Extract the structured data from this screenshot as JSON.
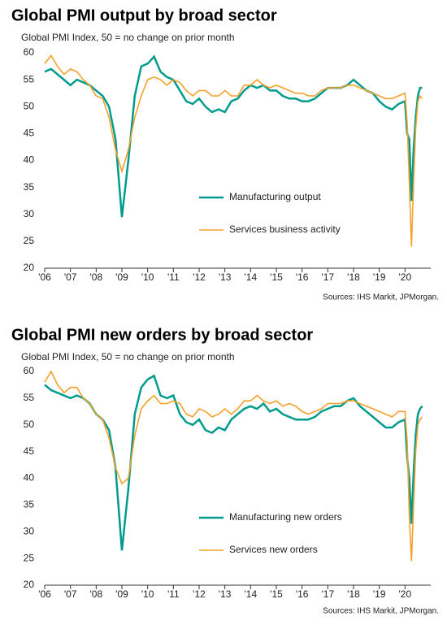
{
  "chart_data": [
    {
      "type": "line",
      "title": "Global PMI output by broad sector",
      "subtitle": "Global  PMI Index, 50 = no change on prior month",
      "source": "Sources: IHS Markit, JPMorgan.",
      "x": [
        2006,
        2006.25,
        2006.5,
        2006.75,
        2007,
        2007.25,
        2007.5,
        2007.75,
        2008,
        2008.25,
        2008.5,
        2008.75,
        2009,
        2009.25,
        2009.5,
        2009.75,
        2010,
        2010.25,
        2010.5,
        2010.75,
        2011,
        2011.25,
        2011.5,
        2011.75,
        2012,
        2012.25,
        2012.5,
        2012.75,
        2013,
        2013.25,
        2013.5,
        2013.75,
        2014,
        2014.25,
        2014.5,
        2014.75,
        2015,
        2015.25,
        2015.5,
        2015.75,
        2016,
        2016.25,
        2016.5,
        2016.75,
        2017,
        2017.25,
        2017.5,
        2017.75,
        2018,
        2018.25,
        2018.5,
        2018.75,
        2019,
        2019.25,
        2019.5,
        2019.75,
        2020,
        2020.083,
        2020.167,
        2020.25,
        2020.333,
        2020.417,
        2020.5,
        2020.583,
        2020.667
      ],
      "series": [
        {
          "name": "Manufacturing output",
          "color": "#009b8d",
          "values": [
            56.5,
            57,
            56,
            55,
            54,
            55,
            54.5,
            54,
            53,
            52,
            50,
            44,
            29.5,
            40,
            52,
            57.5,
            58,
            59.3,
            56.5,
            55.5,
            55,
            53,
            51,
            50.5,
            51.5,
            50,
            49,
            49.5,
            49,
            51,
            51.5,
            53,
            54,
            53.5,
            54,
            53,
            53,
            52,
            51.5,
            51.5,
            51,
            51,
            51.5,
            52.5,
            53.5,
            53.5,
            53.5,
            54,
            55,
            54,
            53,
            52.5,
            51,
            50,
            49.5,
            50.5,
            51,
            45,
            44,
            32.5,
            42,
            48,
            52,
            53.5,
            53.5
          ]
        },
        {
          "name": "Services business activity",
          "color": "#f4a12c",
          "values": [
            58,
            59.5,
            57.5,
            56,
            57,
            56.5,
            55,
            54,
            52,
            51.5,
            48,
            42,
            38,
            42,
            48,
            52,
            55,
            55.5,
            55,
            54,
            55,
            54.5,
            53,
            52,
            53,
            53,
            52,
            52,
            53,
            52,
            52,
            54,
            54,
            55,
            54,
            53.5,
            54,
            53.5,
            53,
            52.5,
            52.5,
            52,
            52,
            53,
            53.5,
            53.5,
            53.5,
            54,
            54,
            53.5,
            53,
            52.5,
            52,
            51.5,
            51.5,
            52,
            52.5,
            47,
            36,
            24,
            36,
            46,
            51,
            52,
            51.5
          ]
        }
      ],
      "xlim": [
        2006,
        2021
      ],
      "ylim": [
        20,
        60
      ],
      "yticks": [
        20,
        25,
        30,
        35,
        40,
        45,
        50,
        55,
        60
      ],
      "xticks": [
        {
          "value": 2006,
          "label": "'06"
        },
        {
          "value": 2007,
          "label": "'07"
        },
        {
          "value": 2008,
          "label": "'08"
        },
        {
          "value": 2009,
          "label": "'09"
        },
        {
          "value": 2010,
          "label": "'10"
        },
        {
          "value": 2011,
          "label": "'11"
        },
        {
          "value": 2012,
          "label": "'12"
        },
        {
          "value": 2013,
          "label": "'13"
        },
        {
          "value": 2014,
          "label": "'14"
        },
        {
          "value": 2015,
          "label": "'15"
        },
        {
          "value": 2016,
          "label": "'16"
        },
        {
          "value": 2017,
          "label": "'17"
        },
        {
          "value": 2018,
          "label": "'18"
        },
        {
          "value": 2019,
          "label": "'19"
        },
        {
          "value": 2020,
          "label": "'20"
        }
      ],
      "grid": false
    },
    {
      "type": "line",
      "title": "Global PMI new orders by broad sector",
      "subtitle": "Global  PMI Index, 50 = no change on prior month",
      "source": "Sources: IHS Markit, JPMorgan.",
      "x": [
        2006,
        2006.25,
        2006.5,
        2006.75,
        2007,
        2007.25,
        2007.5,
        2007.75,
        2008,
        2008.25,
        2008.5,
        2008.75,
        2009,
        2009.25,
        2009.5,
        2009.75,
        2010,
        2010.25,
        2010.5,
        2010.75,
        2011,
        2011.25,
        2011.5,
        2011.75,
        2012,
        2012.25,
        2012.5,
        2012.75,
        2013,
        2013.25,
        2013.5,
        2013.75,
        2014,
        2014.25,
        2014.5,
        2014.75,
        2015,
        2015.25,
        2015.5,
        2015.75,
        2016,
        2016.25,
        2016.5,
        2016.75,
        2017,
        2017.25,
        2017.5,
        2017.75,
        2018,
        2018.25,
        2018.5,
        2018.75,
        2019,
        2019.25,
        2019.5,
        2019.75,
        2020,
        2020.083,
        2020.167,
        2020.25,
        2020.333,
        2020.417,
        2020.5,
        2020.583,
        2020.667
      ],
      "series": [
        {
          "name": "Manufacturing new orders",
          "color": "#009b8d",
          "values": [
            57.5,
            56.5,
            56,
            55.5,
            55,
            55.5,
            55,
            54,
            52,
            51,
            49,
            42,
            26.5,
            38,
            52,
            57,
            58.5,
            59.2,
            55.5,
            55,
            55.5,
            52,
            50.5,
            50,
            51,
            49,
            48.5,
            49.5,
            49,
            51,
            52,
            53,
            53.5,
            53,
            54,
            52.5,
            53,
            52,
            51.5,
            51,
            51,
            51,
            51.5,
            52.5,
            53,
            53.5,
            53.5,
            54.5,
            55,
            53.5,
            52.5,
            51.5,
            50.5,
            49.5,
            49.5,
            50.5,
            51,
            44,
            40,
            31.5,
            41,
            48,
            52,
            53,
            53.5
          ]
        },
        {
          "name": "Services new orders",
          "color": "#f4a12c",
          "values": [
            58,
            60,
            57.5,
            56,
            57,
            57,
            55,
            54,
            52,
            51,
            47.5,
            42,
            39,
            40,
            48,
            53,
            54.5,
            55.5,
            54,
            54,
            54.5,
            54,
            52,
            51.5,
            53,
            52.5,
            51.5,
            52,
            53,
            52,
            53,
            54.5,
            54.5,
            55.5,
            54.5,
            54,
            54.5,
            53.5,
            54,
            53.5,
            52.5,
            52,
            52.5,
            53,
            54,
            54,
            54,
            54.5,
            54.5,
            54,
            53.5,
            53,
            52.5,
            52,
            51.5,
            52.5,
            52.5,
            47,
            33,
            24.5,
            35,
            45,
            50,
            51,
            51.5
          ]
        }
      ],
      "xlim": [
        2006,
        2021
      ],
      "ylim": [
        20,
        60
      ],
      "yticks": [
        20,
        25,
        30,
        35,
        40,
        45,
        50,
        55,
        60
      ],
      "xticks": [
        {
          "value": 2006,
          "label": "'06"
        },
        {
          "value": 2007,
          "label": "'07"
        },
        {
          "value": 2008,
          "label": "'08"
        },
        {
          "value": 2009,
          "label": "'09"
        },
        {
          "value": 2010,
          "label": "'10"
        },
        {
          "value": 2011,
          "label": "'11"
        },
        {
          "value": 2012,
          "label": "'12"
        },
        {
          "value": 2013,
          "label": "'13"
        },
        {
          "value": 2014,
          "label": "'14"
        },
        {
          "value": 2015,
          "label": "'15"
        },
        {
          "value": 2016,
          "label": "'16"
        },
        {
          "value": 2017,
          "label": "'17"
        },
        {
          "value": 2018,
          "label": "'18"
        },
        {
          "value": 2019,
          "label": "'19"
        },
        {
          "value": 2020,
          "label": "'20"
        }
      ],
      "grid": false
    }
  ]
}
